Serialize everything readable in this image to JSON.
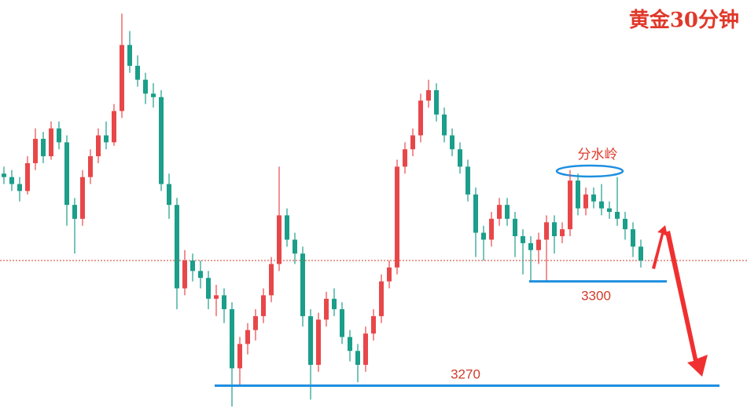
{
  "chart_data": {
    "type": "candlestick",
    "title": "黄金30分钟",
    "annotation": "分水岭",
    "up_color": "#e8474a",
    "down_color": "#1b9e8a",
    "level_color": "#1e8fe0",
    "ylim": [
      3262,
      3378
    ],
    "price_line": 3306,
    "price_line_color": "#d23b2b",
    "levels": [
      3300,
      3270
    ],
    "ohlc": [
      [
        3331,
        3333,
        3328,
        3330
      ],
      [
        3330,
        3332,
        3326,
        3328
      ],
      [
        3328,
        3330,
        3323,
        3326
      ],
      [
        3326,
        3336,
        3325,
        3334
      ],
      [
        3334,
        3344,
        3332,
        3341
      ],
      [
        3341,
        3343,
        3334,
        3336
      ],
      [
        3336,
        3346,
        3335,
        3344
      ],
      [
        3344,
        3346,
        3338,
        3340
      ],
      [
        3340,
        3342,
        3316,
        3322
      ],
      [
        3322,
        3324,
        3308,
        3318
      ],
      [
        3318,
        3332,
        3316,
        3330
      ],
      [
        3330,
        3338,
        3328,
        3336
      ],
      [
        3336,
        3344,
        3334,
        3342
      ],
      [
        3342,
        3346,
        3338,
        3340
      ],
      [
        3340,
        3351,
        3339,
        3349
      ],
      [
        3349,
        3377,
        3347,
        3368
      ],
      [
        3368,
        3372,
        3360,
        3362
      ],
      [
        3362,
        3365,
        3356,
        3358
      ],
      [
        3358,
        3360,
        3351,
        3354
      ],
      [
        3354,
        3357,
        3350,
        3353
      ],
      [
        3353,
        3355,
        3326,
        3328
      ],
      [
        3328,
        3331,
        3318,
        3322
      ],
      [
        3322,
        3324,
        3292,
        3298
      ],
      [
        3298,
        3309,
        3296,
        3306
      ],
      [
        3306,
        3308,
        3300,
        3303
      ],
      [
        3303,
        3306,
        3298,
        3301
      ],
      [
        3301,
        3303,
        3292,
        3295
      ],
      [
        3295,
        3299,
        3290,
        3296
      ],
      [
        3296,
        3298,
        3288,
        3292
      ],
      [
        3292,
        3294,
        3264,
        3275
      ],
      [
        3275,
        3284,
        3270,
        3282
      ],
      [
        3282,
        3288,
        3279,
        3286
      ],
      [
        3286,
        3292,
        3283,
        3290
      ],
      [
        3290,
        3298,
        3288,
        3296
      ],
      [
        3296,
        3307,
        3294,
        3305
      ],
      [
        3305,
        3333,
        3303,
        3319
      ],
      [
        3319,
        3321,
        3310,
        3312
      ],
      [
        3312,
        3314,
        3305,
        3308
      ],
      [
        3308,
        3310,
        3287,
        3290
      ],
      [
        3290,
        3292,
        3266,
        3276
      ],
      [
        3276,
        3291,
        3274,
        3289
      ],
      [
        3289,
        3297,
        3287,
        3295
      ],
      [
        3295,
        3298,
        3290,
        3292
      ],
      [
        3292,
        3294,
        3282,
        3284
      ],
      [
        3284,
        3286,
        3277,
        3280
      ],
      [
        3280,
        3282,
        3271,
        3276
      ],
      [
        3276,
        3287,
        3274,
        3285
      ],
      [
        3285,
        3292,
        3283,
        3290
      ],
      [
        3290,
        3302,
        3288,
        3300
      ],
      [
        3300,
        3306,
        3298,
        3304
      ],
      [
        3304,
        3335,
        3302,
        3333
      ],
      [
        3333,
        3340,
        3331,
        3338
      ],
      [
        3338,
        3344,
        3336,
        3342
      ],
      [
        3342,
        3354,
        3340,
        3352
      ],
      [
        3352,
        3358,
        3350,
        3355
      ],
      [
        3355,
        3357,
        3346,
        3348
      ],
      [
        3348,
        3350,
        3340,
        3342
      ],
      [
        3342,
        3344,
        3336,
        3338
      ],
      [
        3338,
        3340,
        3331,
        3333
      ],
      [
        3333,
        3335,
        3323,
        3325
      ],
      [
        3325,
        3327,
        3307,
        3314
      ],
      [
        3314,
        3316,
        3306,
        3312
      ],
      [
        3312,
        3320,
        3310,
        3318
      ],
      [
        3318,
        3324,
        3316,
        3322
      ],
      [
        3322,
        3324,
        3316,
        3318
      ],
      [
        3318,
        3320,
        3307,
        3313
      ],
      [
        3313,
        3315,
        3302,
        3311
      ],
      [
        3311,
        3313,
        3300,
        3309
      ],
      [
        3309,
        3314,
        3305,
        3312
      ],
      [
        3312,
        3319,
        3300,
        3317
      ],
      [
        3317,
        3319,
        3308,
        3313
      ],
      [
        3313,
        3317,
        3311,
        3315
      ],
      [
        3315,
        3332,
        3313,
        3329
      ],
      [
        3329,
        3331,
        3319,
        3321
      ],
      [
        3321,
        3327,
        3319,
        3325
      ],
      [
        3325,
        3327,
        3321,
        3323
      ],
      [
        3323,
        3328,
        3319,
        3321
      ],
      [
        3321,
        3323,
        3318,
        3320
      ],
      [
        3320,
        3330,
        3316,
        3318
      ],
      [
        3318,
        3320,
        3312,
        3315
      ],
      [
        3315,
        3317,
        3307,
        3310
      ],
      [
        3310,
        3312,
        3304,
        3306
      ]
    ]
  }
}
